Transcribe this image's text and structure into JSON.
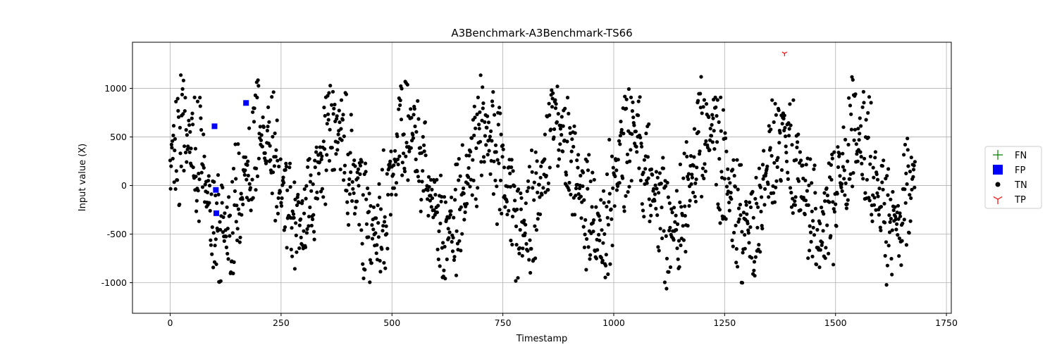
{
  "chart_data": {
    "type": "scatter",
    "title": "A3Benchmark-A3Benchmark-TS66",
    "xlabel": "Timestamp",
    "ylabel": "Input value (X)",
    "xlim": [
      -85,
      1761
    ],
    "ylim": [
      -1315,
      1475
    ],
    "xticks": [
      0,
      250,
      500,
      750,
      1000,
      1250,
      1500,
      1750
    ],
    "yticks": [
      -1000,
      -500,
      0,
      500,
      1000
    ],
    "grid": true,
    "legend_position": "right",
    "tn_period": 168,
    "tn_count": 1680,
    "series": [
      {
        "name": "FN",
        "marker": "plus",
        "color": "#008000",
        "points": []
      },
      {
        "name": "FP",
        "marker": "square",
        "color": "#0000ff",
        "points": [
          [
            100,
            610
          ],
          [
            103,
            -45
          ],
          [
            104,
            -285
          ],
          [
            171,
            850
          ]
        ]
      },
      {
        "name": "TN",
        "marker": "circle",
        "color": "#000000",
        "description_of_values": "1680 points, timestamps 0-1679, periodic pattern with period 168, values ranging roughly -1190 to 1200"
      },
      {
        "name": "TP",
        "marker": "tri_down",
        "color": "#ff0000",
        "points": [
          [
            1385,
            1360
          ]
        ]
      }
    ]
  }
}
